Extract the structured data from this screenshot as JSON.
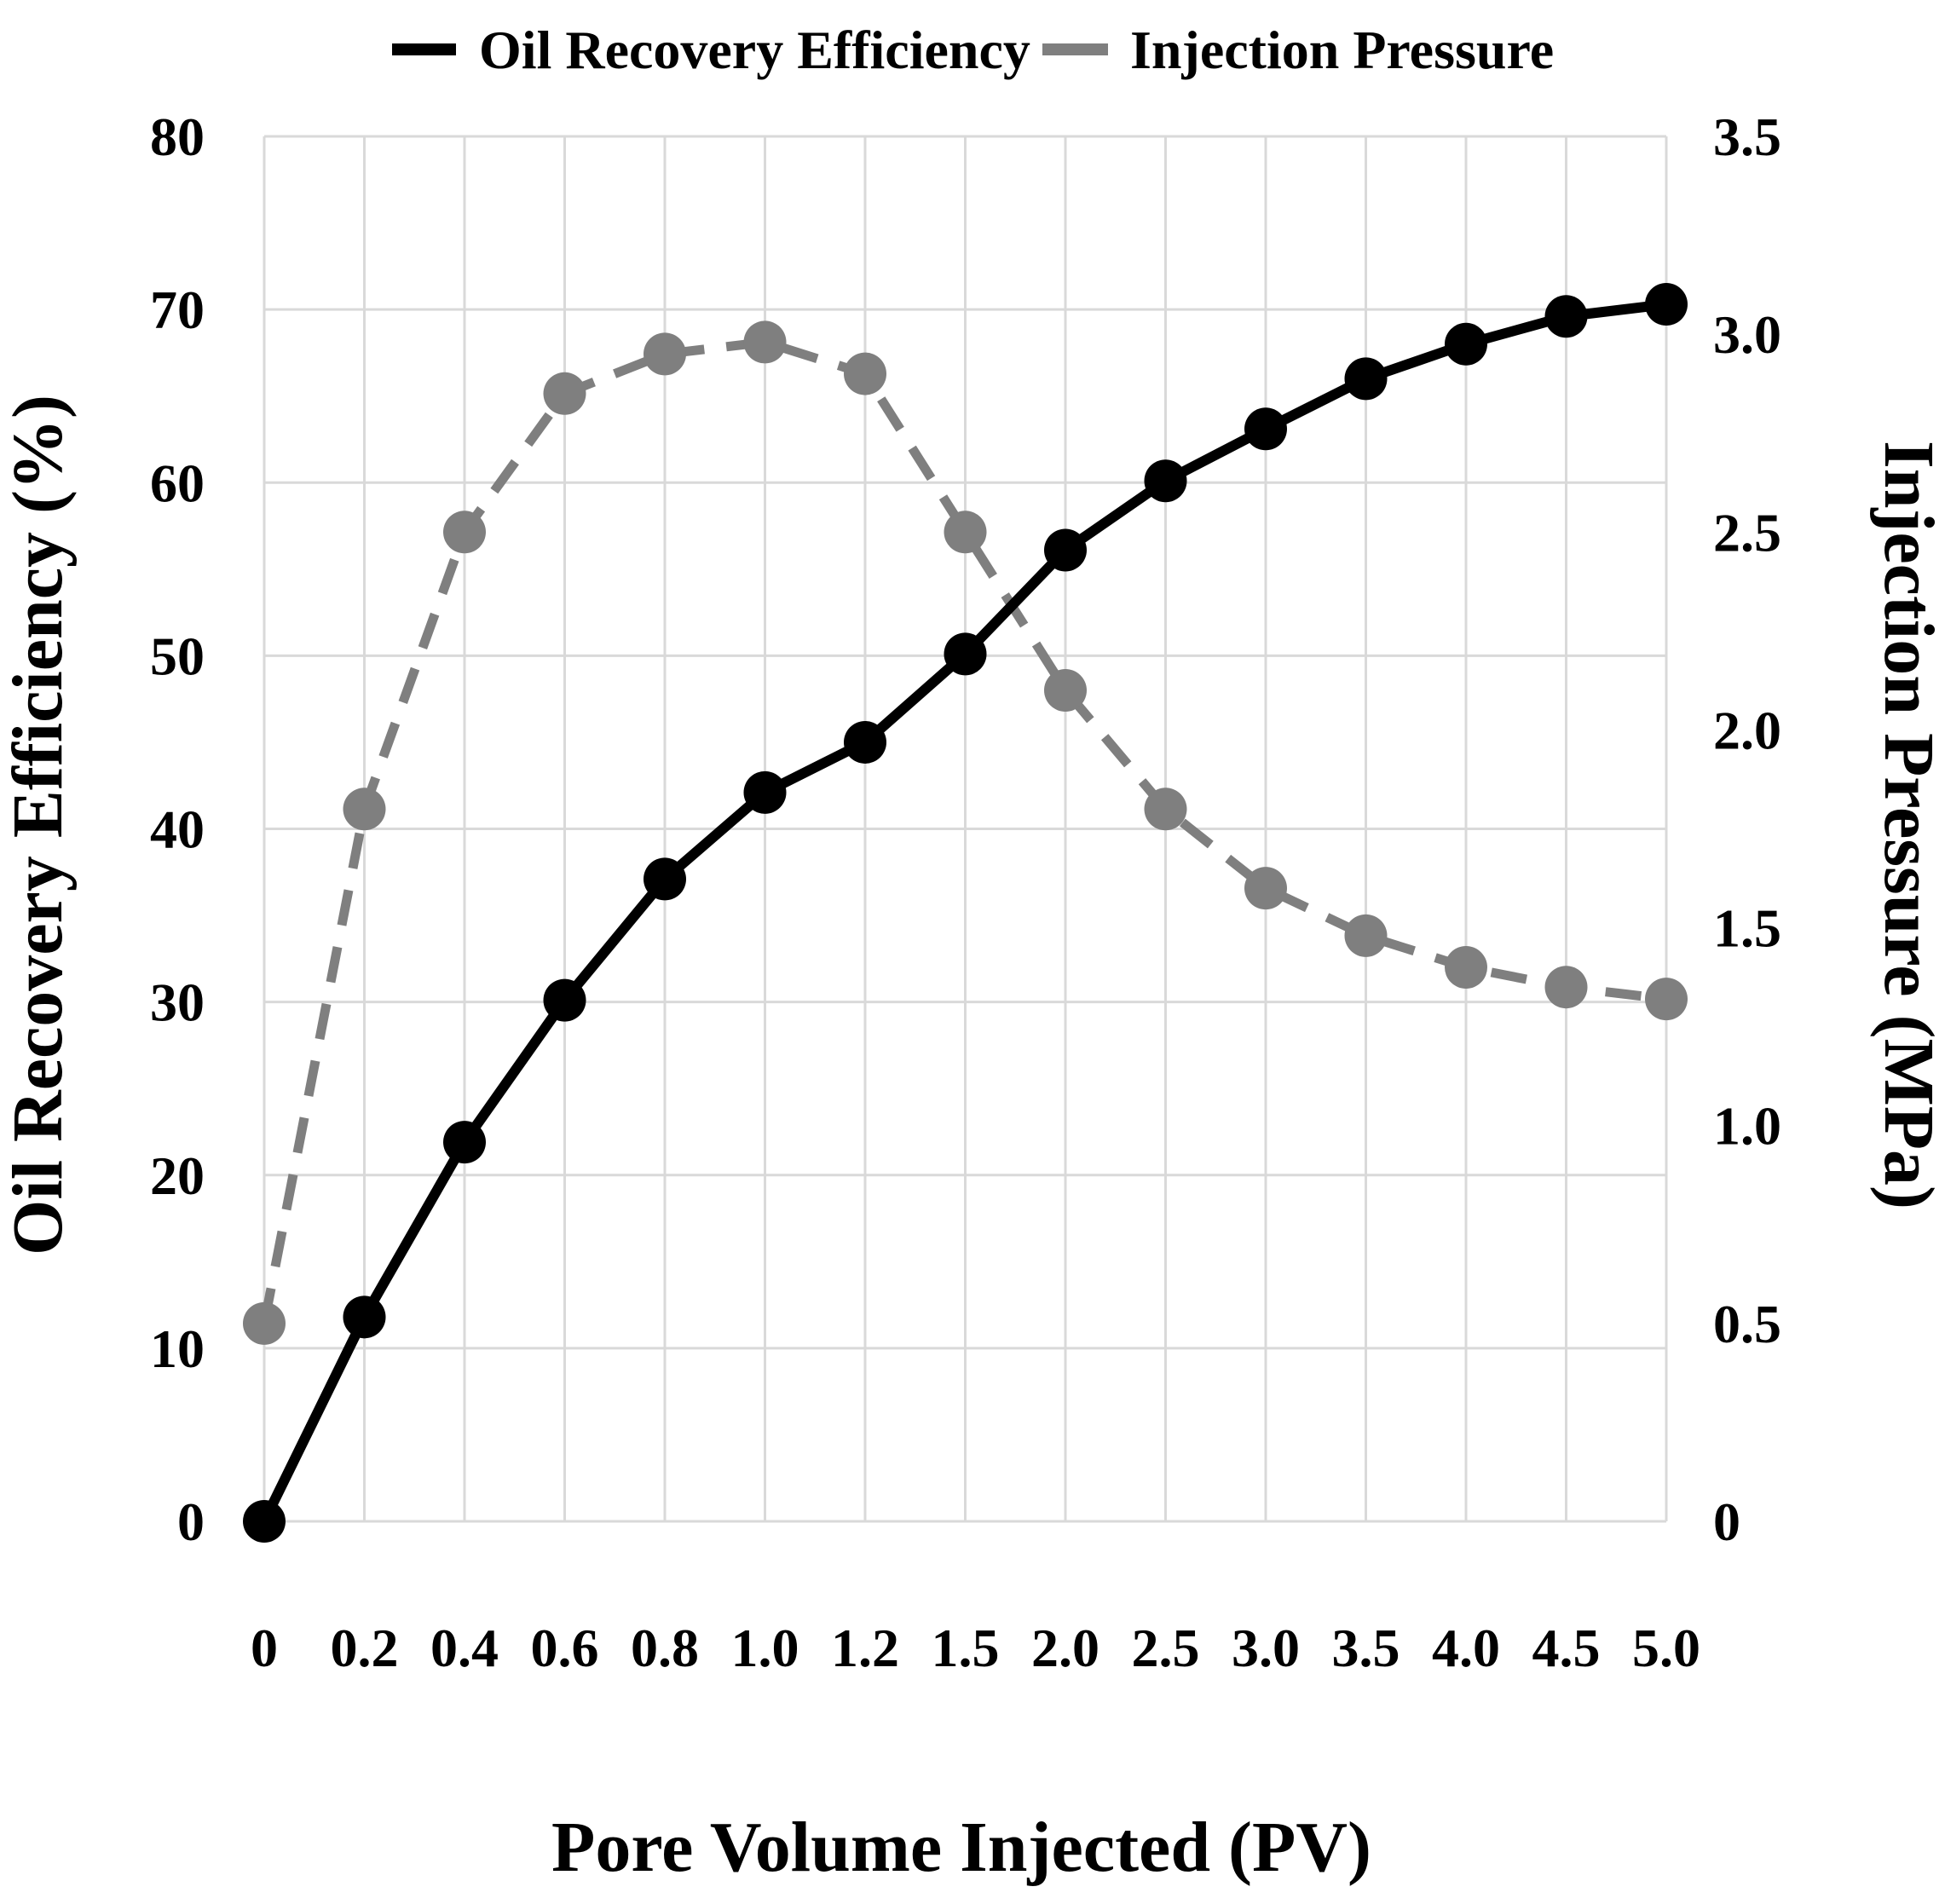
{
  "chart_data": {
    "type": "line",
    "title": "",
    "categories": [
      "0",
      "0.2",
      "0.4",
      "0.6",
      "0.8",
      "1.0",
      "1.2",
      "1.5",
      "2.0",
      "2.5",
      "3.0",
      "3.5",
      "4.0",
      "4.5",
      "5.0"
    ],
    "xlabel": "Pore Volume Injected (PV)",
    "ylabel": "Oil Recovery  Efficiency (%)",
    "y2label": "Injection Pressure (MPa)",
    "ylim": [
      0,
      80
    ],
    "y2lim": [
      0,
      3.5
    ],
    "yticks": [
      "0",
      "10",
      "20",
      "30",
      "40",
      "50",
      "60",
      "70",
      "80"
    ],
    "y2ticks": [
      "0",
      "0.5",
      "1.0",
      "1.5",
      "2.0",
      "2.5",
      "3.0",
      "3.5"
    ],
    "grid": true,
    "legend_position": "top-center",
    "series": [
      {
        "name": "Oil Recovery Efficiency",
        "axis": "left",
        "style": "solid",
        "color": "#000000",
        "values": [
          0,
          11.8,
          21.9,
          30.1,
          37.1,
          42.1,
          45.0,
          50.1,
          56.1,
          60.1,
          63.1,
          66.0,
          68.0,
          69.6,
          70.3
        ]
      },
      {
        "name": "Injection Pressure",
        "axis": "right",
        "style": "dashed",
        "color": "#7f7f7f",
        "values": [
          0.5,
          1.8,
          2.5,
          2.85,
          2.95,
          2.98,
          2.9,
          2.5,
          2.1,
          1.8,
          1.6,
          1.48,
          1.4,
          1.35,
          1.32
        ]
      }
    ]
  }
}
